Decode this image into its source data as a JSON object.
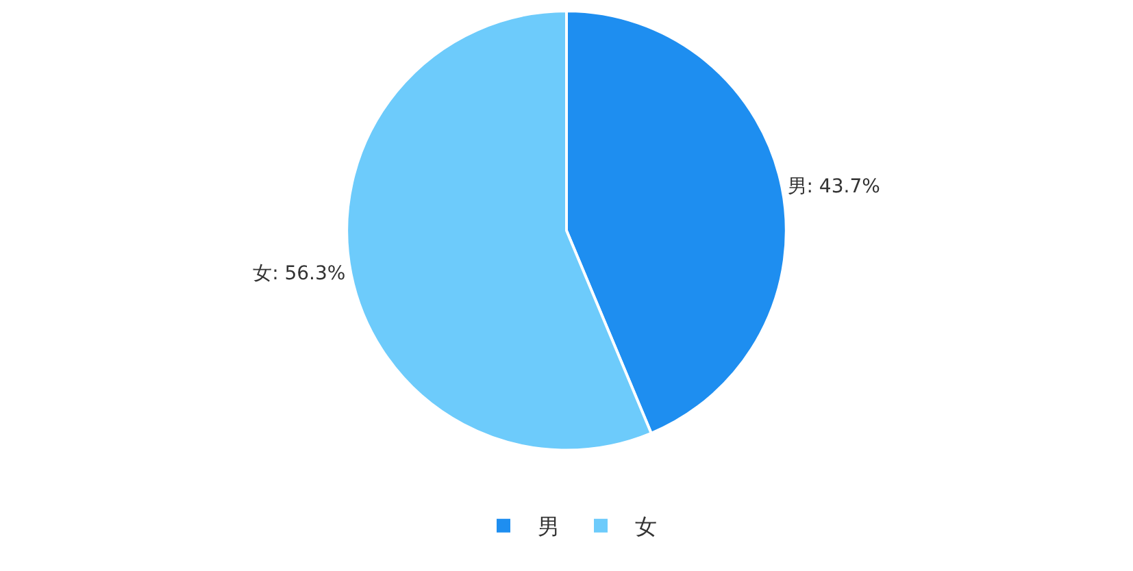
{
  "chart_data": {
    "type": "pie",
    "categories": [
      "男",
      "女"
    ],
    "values": [
      43.7,
      56.3
    ],
    "colors": [
      "#1e8ef0",
      "#6dcbfb"
    ],
    "value_labels": [
      "男: 43.7%",
      "女: 56.3%"
    ],
    "legend": "bottom"
  }
}
